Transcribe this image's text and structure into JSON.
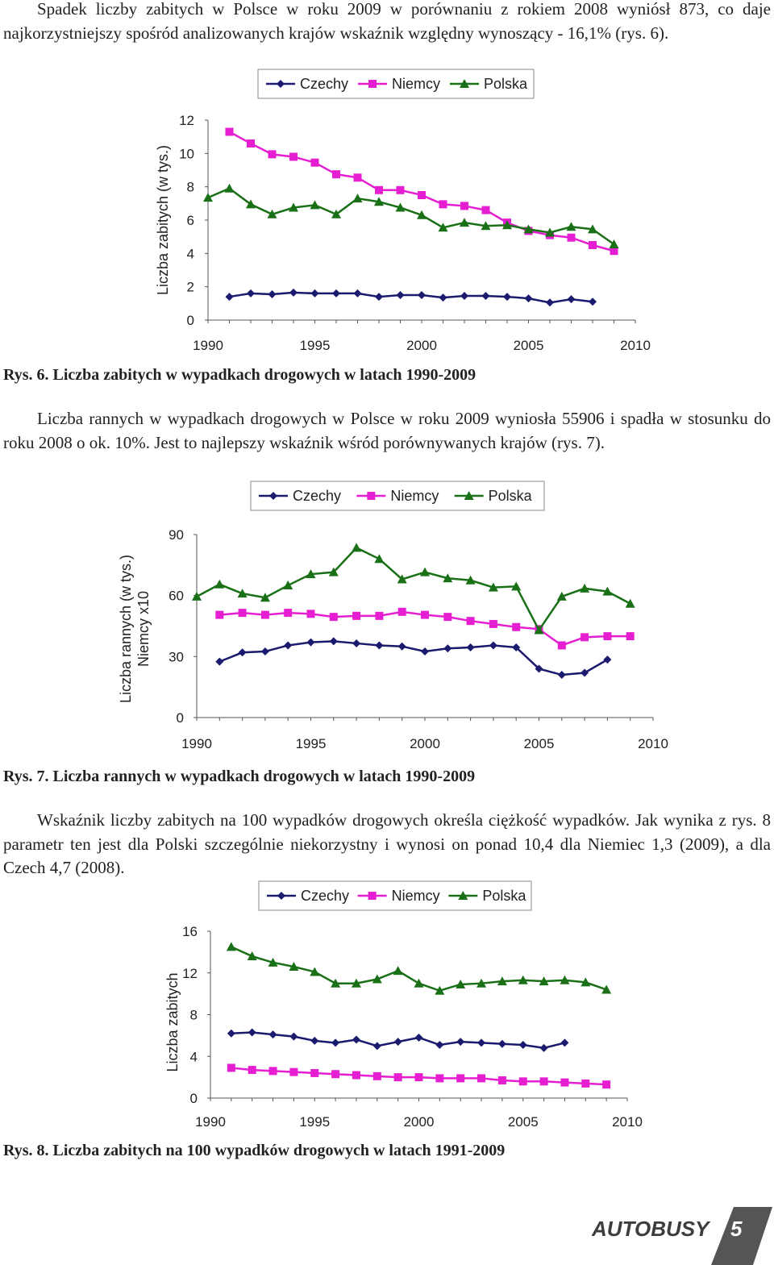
{
  "paragraphs": {
    "p1": "Spadek liczby zabitych w Polsce w roku 2009 w porównaniu z rokiem 2008 wyniósł 873, co daje najkorzystniejszy spośród analizowanych krajów wskaźnik względny wynoszący - 16,1% (rys. 6).",
    "p2": "Liczba rannych w wypadkach drogowych w Polsce w roku 2009 wyniosła 55906 i spadła w stosunku do roku 2008 o ok. 10%. Jest to najlepszy wskaźnik wśród porównywanych krajów (rys. 7).",
    "p3": "Wskaźnik liczby zabitych na 100 wypadków drogowych określa ciężkość wypadków. Jak wynika z rys. 8 parametr ten jest dla Polski szczególnie niekorzystny i wynosi on ponad 10,4 dla Niemiec 1,3 (2009), a dla Czech 4,7 (2008)."
  },
  "captions": {
    "rys6": "Rys. 6. Liczba zabitych w wypadkach drogowych w latach 1990-2009",
    "rys7": "Rys. 7. Liczba rannych w wypadkach drogowych w latach 1990-2009",
    "rys8": "Rys. 8. Liczba zabitych na 100 wypadków drogowych w latach 1991-2009"
  },
  "logo": {
    "text": "AUTOBUSY",
    "number": "5",
    "colors": {
      "text": "#3d3d3d",
      "badge": "#555555"
    }
  },
  "chart_data": [
    {
      "type": "line",
      "title": "",
      "xlabel": "",
      "ylabel": "Liczba zabitych (w tys.)",
      "xlim": [
        1990,
        2010
      ],
      "ylim": [
        0,
        12
      ],
      "xticks": [
        1990,
        1995,
        2000,
        2005,
        2010
      ],
      "yticks": [
        0,
        2,
        4,
        6,
        8,
        10,
        12
      ],
      "grid": false,
      "legend_position": "top",
      "series": [
        {
          "name": "Czechy",
          "color": "#1a1a6e",
          "marker": "diamond",
          "x": [
            1991,
            1992,
            1993,
            1994,
            1995,
            1996,
            1997,
            1998,
            1999,
            2000,
            2001,
            2002,
            2003,
            2004,
            2005,
            2006,
            2007,
            2008
          ],
          "values": [
            1.4,
            1.6,
            1.55,
            1.65,
            1.6,
            1.6,
            1.6,
            1.4,
            1.5,
            1.5,
            1.35,
            1.45,
            1.45,
            1.4,
            1.3,
            1.05,
            1.25,
            1.1
          ]
        },
        {
          "name": "Niemcy",
          "color": "#e61ed2",
          "marker": "square",
          "x": [
            1991,
            1992,
            1993,
            1994,
            1995,
            1996,
            1997,
            1998,
            1999,
            2000,
            2001,
            2002,
            2003,
            2004,
            2005,
            2006,
            2007,
            2008,
            2009
          ],
          "values": [
            11.3,
            10.6,
            9.95,
            9.8,
            9.45,
            8.75,
            8.55,
            7.8,
            7.8,
            7.5,
            6.95,
            6.85,
            6.6,
            5.85,
            5.35,
            5.1,
            4.95,
            4.5,
            4.15
          ]
        },
        {
          "name": "Polska",
          "color": "#1a7016",
          "marker": "triangle",
          "x": [
            1990,
            1991,
            1992,
            1993,
            1994,
            1995,
            1996,
            1997,
            1998,
            1999,
            2000,
            2001,
            2002,
            2003,
            2004,
            2005,
            2006,
            2007,
            2008,
            2009
          ],
          "values": [
            7.35,
            7.9,
            6.95,
            6.35,
            6.75,
            6.9,
            6.35,
            7.3,
            7.1,
            6.75,
            6.3,
            5.55,
            5.85,
            5.65,
            5.7,
            5.45,
            5.25,
            5.6,
            5.45,
            4.55
          ]
        }
      ]
    },
    {
      "type": "line",
      "title": "",
      "xlabel": "",
      "ylabel": "Liczba rannych (w tys.) Niemcy x10",
      "xlim": [
        1990,
        2010
      ],
      "ylim": [
        0,
        90
      ],
      "xticks": [
        1990,
        1995,
        2000,
        2005,
        2010
      ],
      "yticks": [
        0,
        30,
        60,
        90
      ],
      "grid": false,
      "legend_position": "top",
      "series": [
        {
          "name": "Czechy",
          "color": "#1a1a6e",
          "marker": "diamond",
          "x": [
            1991,
            1992,
            1993,
            1994,
            1995,
            1996,
            1997,
            1998,
            1999,
            2000,
            2001,
            2002,
            2003,
            2004,
            2005,
            2006,
            2007,
            2008
          ],
          "values": [
            27.5,
            32,
            32.5,
            35.5,
            37,
            37.5,
            36.5,
            35.5,
            35,
            32.5,
            34,
            34.5,
            35.5,
            34.5,
            24,
            21,
            22,
            28.5
          ]
        },
        {
          "name": "Niemcy",
          "color": "#e61ed2",
          "marker": "square",
          "x": [
            1991,
            1992,
            1993,
            1994,
            1995,
            1996,
            1997,
            1998,
            1999,
            2000,
            2001,
            2002,
            2003,
            2004,
            2005,
            2006,
            2007,
            2008,
            2009
          ],
          "values": [
            50.5,
            51.5,
            50.5,
            51.5,
            51,
            49.5,
            50,
            50,
            52,
            50.5,
            49.5,
            47.5,
            46,
            44.5,
            43.5,
            35.5,
            39.5,
            40,
            40
          ]
        },
        {
          "name": "Polska",
          "color": "#1a7016",
          "marker": "triangle",
          "x": [
            1990,
            1991,
            1992,
            1993,
            1994,
            1995,
            1996,
            1997,
            1998,
            1999,
            2000,
            2001,
            2002,
            2003,
            2004,
            2005,
            2006,
            2007,
            2008,
            2009
          ],
          "values": [
            59.5,
            65.5,
            61,
            59,
            65,
            70.5,
            71.5,
            83.5,
            78,
            68,
            71.5,
            68.5,
            67.5,
            64,
            64.5,
            43,
            59.5,
            63.5,
            62,
            56
          ]
        }
      ]
    },
    {
      "type": "line",
      "title": "",
      "xlabel": "",
      "ylabel": "Liczba zabitych",
      "xlim": [
        1990,
        2010
      ],
      "ylim": [
        0,
        16
      ],
      "xticks": [
        1990,
        1995,
        2000,
        2005,
        2010
      ],
      "yticks": [
        0,
        4,
        8,
        12,
        16
      ],
      "grid": false,
      "legend_position": "top",
      "series": [
        {
          "name": "Czechy",
          "color": "#1a1a6e",
          "marker": "diamond",
          "x": [
            1991,
            1992,
            1993,
            1994,
            1995,
            1996,
            1997,
            1998,
            1999,
            2000,
            2001,
            2002,
            2003,
            2004,
            2005,
            2006,
            2007
          ],
          "values": [
            6.2,
            6.3,
            6.1,
            5.9,
            5.5,
            5.3,
            5.6,
            5.0,
            5.4,
            5.8,
            5.1,
            5.4,
            5.3,
            5.2,
            5.1,
            4.8,
            5.3
          ]
        },
        {
          "name": "Niemcy",
          "color": "#e61ed2",
          "marker": "square",
          "x": [
            1991,
            1992,
            1993,
            1994,
            1995,
            1996,
            1997,
            1998,
            1999,
            2000,
            2001,
            2002,
            2003,
            2004,
            2005,
            2006,
            2007,
            2008,
            2009
          ],
          "values": [
            2.9,
            2.7,
            2.6,
            2.5,
            2.4,
            2.3,
            2.2,
            2.1,
            2.0,
            2.0,
            1.9,
            1.9,
            1.9,
            1.7,
            1.6,
            1.6,
            1.5,
            1.4,
            1.3
          ]
        },
        {
          "name": "Polska",
          "color": "#1a7016",
          "marker": "triangle",
          "x": [
            1991,
            1992,
            1993,
            1994,
            1995,
            1996,
            1997,
            1998,
            1999,
            2000,
            2001,
            2002,
            2003,
            2004,
            2005,
            2006,
            2007,
            2008,
            2009
          ],
          "values": [
            14.5,
            13.6,
            13.0,
            12.6,
            12.1,
            11.0,
            11.0,
            11.4,
            12.2,
            11.0,
            10.3,
            10.9,
            11.0,
            11.2,
            11.3,
            11.2,
            11.3,
            11.1,
            10.4
          ]
        }
      ]
    }
  ]
}
